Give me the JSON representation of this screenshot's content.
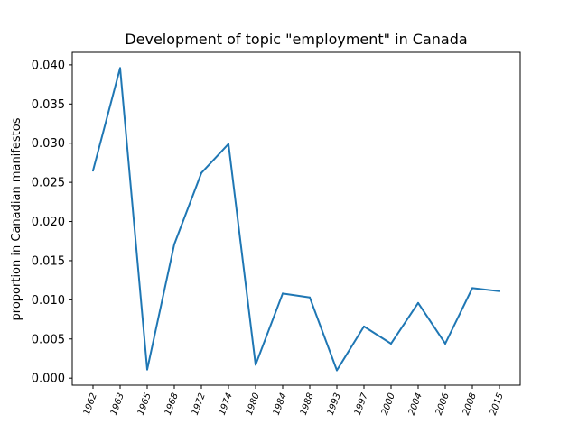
{
  "chart_data": {
    "type": "line",
    "title": "Development of topic \"employment\" in Canada",
    "xlabel": "",
    "ylabel": "proportion in Canadian manifestos",
    "categories": [
      "1962",
      "1963",
      "1965",
      "1968",
      "1972",
      "1974",
      "1980",
      "1984",
      "1988",
      "1993",
      "1997",
      "2000",
      "2004",
      "2006",
      "2008",
      "2015"
    ],
    "series": [
      {
        "color": "#1f77b4",
        "values": [
          0.0265,
          0.0396,
          0.0011,
          0.0171,
          0.0262,
          0.0299,
          0.0017,
          0.0108,
          0.0103,
          0.001,
          0.0066,
          0.0044,
          0.0096,
          0.0044,
          0.0115,
          0.0111
        ]
      }
    ],
    "ylim": [
      -0.0009,
      0.0416
    ],
    "yticks": [
      0.0,
      0.005,
      0.01,
      0.015,
      0.02,
      0.025,
      0.03,
      0.035,
      0.04
    ],
    "ytick_labels": [
      "0.000",
      "0.005",
      "0.010",
      "0.015",
      "0.020",
      "0.025",
      "0.030",
      "0.035",
      "0.040"
    ],
    "grid": false,
    "legend": "none"
  }
}
